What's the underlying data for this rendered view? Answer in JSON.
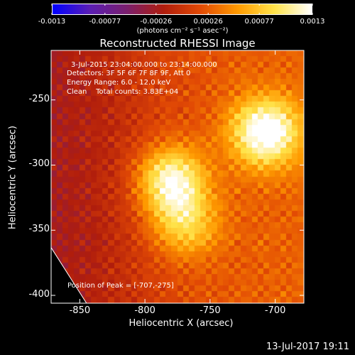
{
  "colorbar": {
    "tick_labels": [
      "-0.0013",
      "-0.00077",
      "-0.00026",
      "0.00026",
      "0.00077",
      "0.0013"
    ],
    "tick_values": [
      -0.0013,
      -0.00077,
      -0.00026,
      0.00026,
      0.00077,
      0.0013
    ],
    "range": [
      -0.0013,
      0.0013
    ],
    "unit": "(photons cm⁻² s⁻¹ asec⁻²)",
    "colormap_stops": [
      "#0000ff",
      "#5a1eb4",
      "#7a1f6e",
      "#b01d0d",
      "#e24a05",
      "#ff9a00",
      "#ffe34a",
      "#ffffff"
    ]
  },
  "annotations": {
    "time_range": "3-Jul-2015 23:04:00.000 to 23:14:00.000",
    "detectors": "Detectors: 3F 5F 6F 7F 8F 9F, Att 0",
    "energy": "Energy Range: 6.0 - 12.0 keV",
    "clean": "Clean    Total counts: 3.83E+04",
    "peak": "Position of Peak = [-707,-275]"
  },
  "timestamp": "13-Jul-2017 19:11",
  "chart_data": {
    "type": "heatmap",
    "title": "Reconstructed RHESSI Image",
    "xlabel": "Heliocentric X (arcsec)",
    "ylabel": "Heliocentric Y (arcsec)",
    "xlim": [
      -872,
      -678
    ],
    "ylim": [
      -406,
      -212
    ],
    "x_ticks": [
      -850,
      -800,
      -750,
      -700
    ],
    "x_tick_labels": [
      "-850",
      "-800",
      "-750",
      "-700"
    ],
    "y_ticks": [
      -250,
      -300,
      -350,
      -400
    ],
    "y_tick_labels": [
      "-250",
      "-300",
      "-350",
      "-400"
    ],
    "peak_position": [
      -707,
      -275
    ],
    "sources": [
      {
        "x": -707,
        "y": -275,
        "relative_intensity": 1.0
      },
      {
        "x": -780,
        "y": -312,
        "relative_intensity": 0.85
      },
      {
        "x": -770,
        "y": -345,
        "relative_intensity": 0.55
      }
    ],
    "negative_region": "left side (x < -810)",
    "grid": false,
    "legend": "none"
  }
}
